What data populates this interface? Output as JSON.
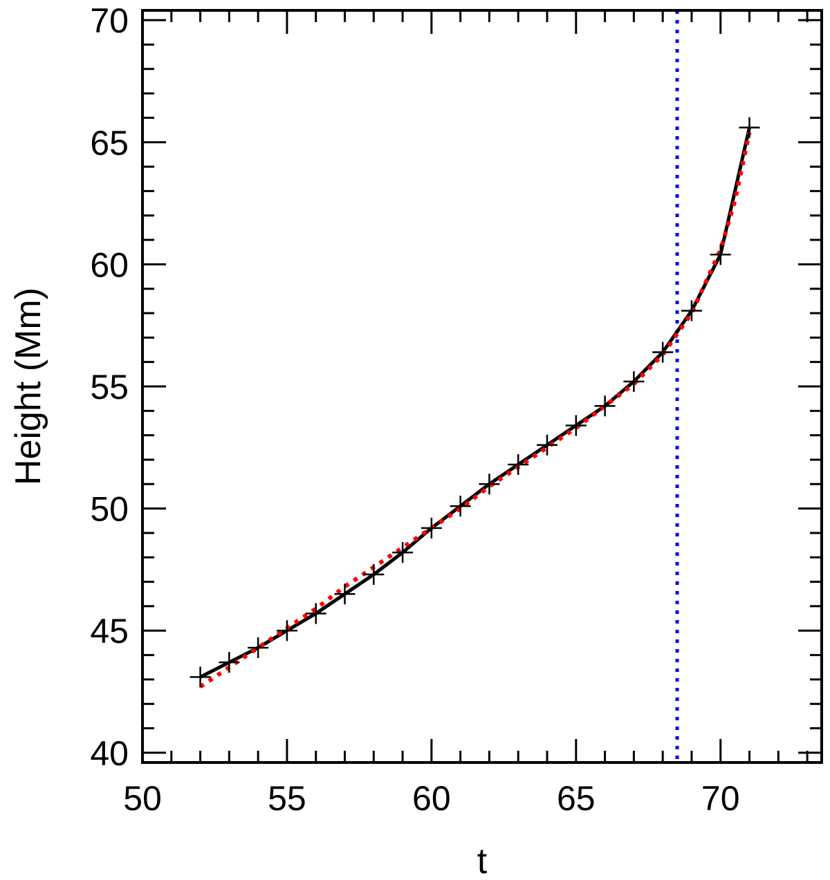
{
  "chart_data": {
    "type": "line",
    "title": "",
    "xlabel": "t",
    "ylabel": "Height (Mm)",
    "xlim": [
      50,
      73.5
    ],
    "ylim": [
      39.6,
      70.4
    ],
    "x_major_ticks": [
      50,
      55,
      60,
      65,
      70
    ],
    "x_minor_step": 1,
    "y_major_ticks": [
      40,
      45,
      50,
      55,
      60,
      65,
      70
    ],
    "y_minor_step": 1,
    "grid": false,
    "legend": "none",
    "series": [
      {
        "style": "solid",
        "color": "#000000",
        "marker": "plus",
        "x": [
          52,
          53,
          54,
          55,
          56,
          57,
          58,
          59,
          60,
          61,
          62,
          63,
          64,
          65,
          66,
          67,
          68,
          69,
          70,
          71
        ],
        "y": [
          43.1,
          43.7,
          44.3,
          45.0,
          45.7,
          46.5,
          47.3,
          48.2,
          49.2,
          50.1,
          51.0,
          51.8,
          52.6,
          53.4,
          54.2,
          55.2,
          56.4,
          58.1,
          60.4,
          65.6
        ]
      },
      {
        "style": "dotted",
        "color": "#ff0000",
        "marker": "none",
        "x": [
          52,
          53,
          54,
          55,
          56,
          57,
          58,
          59,
          60,
          61,
          62,
          63,
          64,
          65,
          66,
          67,
          68,
          69,
          70,
          70.5,
          71
        ],
        "y": [
          42.7,
          43.5,
          44.3,
          45.1,
          45.9,
          46.8,
          47.6,
          48.4,
          49.2,
          50.0,
          50.9,
          51.7,
          52.5,
          53.3,
          54.2,
          55.1,
          56.3,
          58.0,
          60.6,
          62.6,
          65.4
        ]
      }
    ],
    "reference_lines": [
      {
        "orientation": "vertical",
        "x": 68.5,
        "style": "dotted",
        "color": "#0000ff"
      }
    ]
  }
}
